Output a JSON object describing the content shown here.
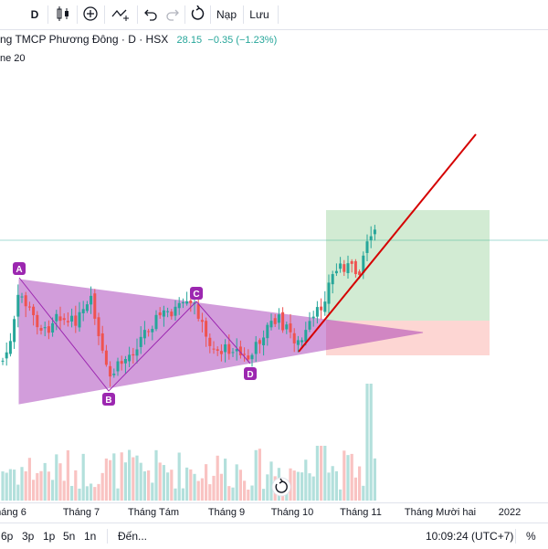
{
  "toolbar": {
    "interval": "D",
    "load_label": "Nạp",
    "save_label": "Lưu"
  },
  "legend": {
    "symbol": "ng TMCP Phương Đông · D · HSX",
    "price": "28.15",
    "change": "−0.35 (−1.23%)",
    "indicator": "ne 20"
  },
  "pattern_points": [
    "A",
    "B",
    "C",
    "D"
  ],
  "time_axis": [
    "háng 6",
    "Tháng 7",
    "Tháng Tám",
    "Tháng 9",
    "Tháng 10",
    "Tháng 11",
    "Tháng Mười hai",
    "2022"
  ],
  "bottom_bar": {
    "ranges": [
      "6p",
      "3p",
      "1p",
      "5n",
      "1n"
    ],
    "goto": "Đến...",
    "clock": "10:09:24 (UTC+7)",
    "percent": "%"
  },
  "colors": {
    "up": "#26a69a",
    "down": "#ef5350",
    "triangle": "#9c27b0",
    "target_zone": "#4caf50",
    "stop_zone": "#f44336",
    "trendline": "#d50000",
    "marker": "#9c27b0"
  }
}
